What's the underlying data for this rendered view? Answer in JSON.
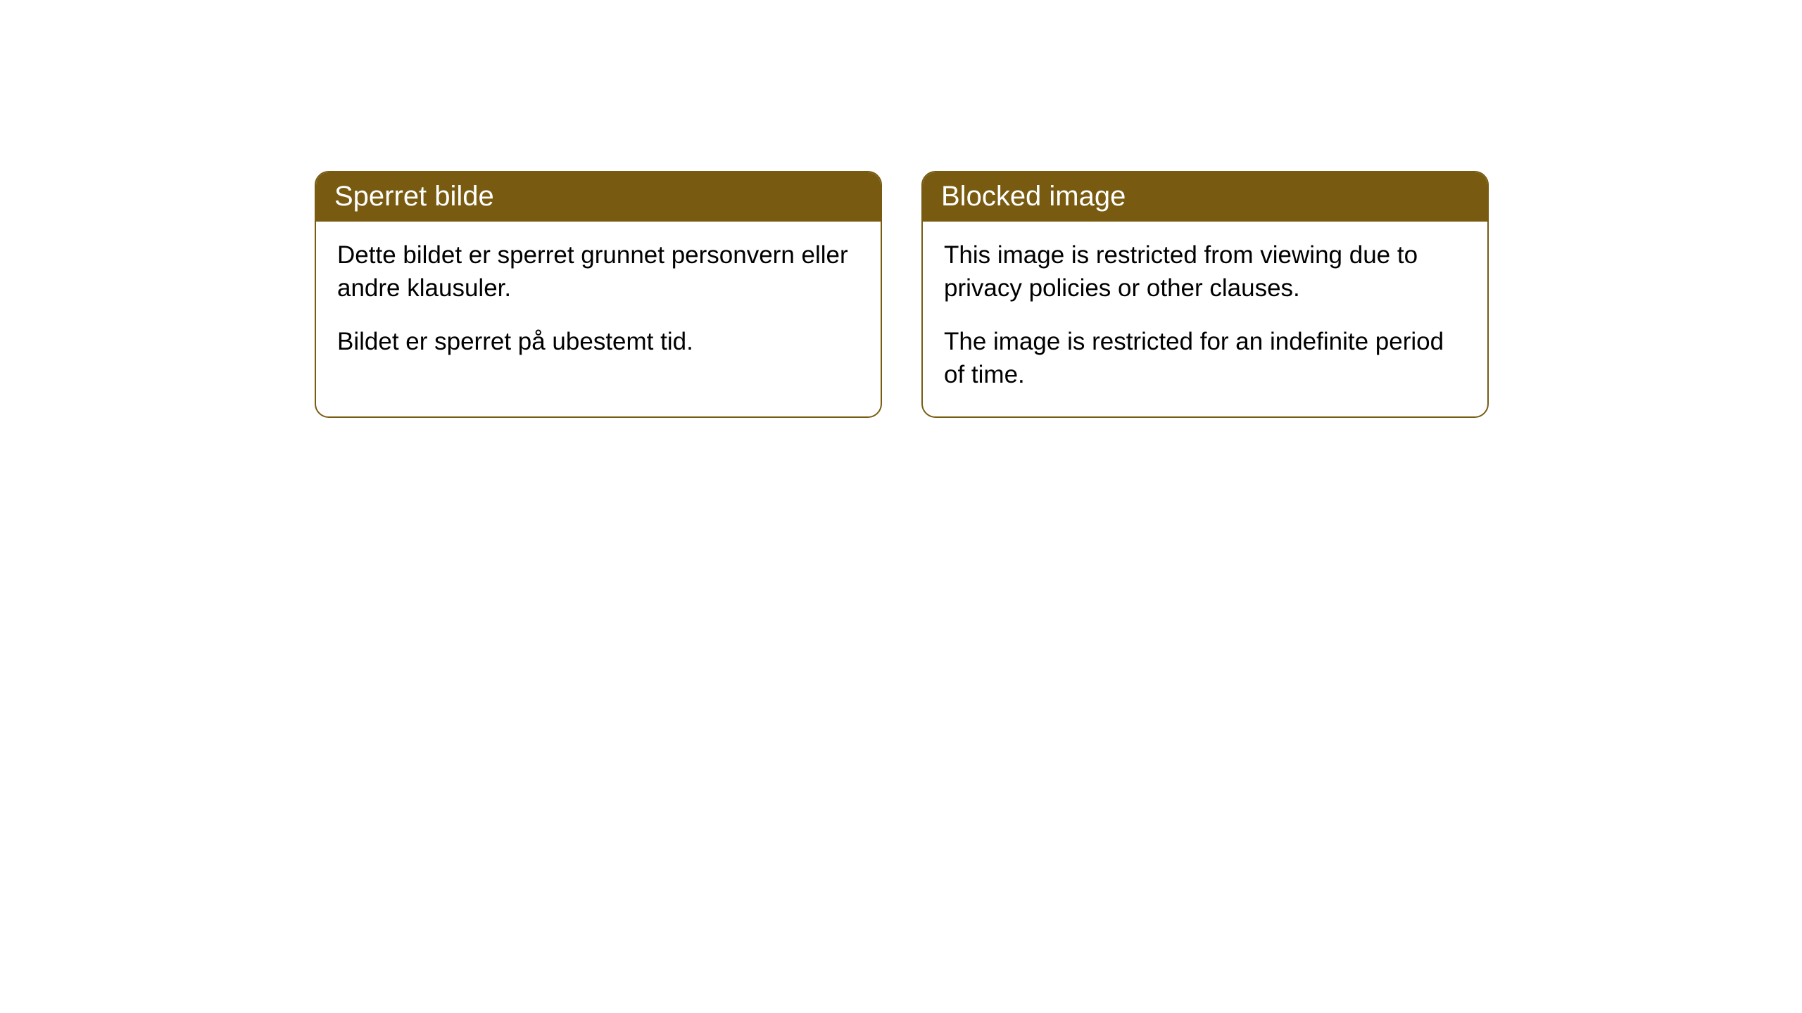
{
  "cards": [
    {
      "title": "Sperret bilde",
      "paragraph1": "Dette bildet er sperret grunnet personvern eller andre klausuler.",
      "paragraph2": "Bildet er sperret på ubestemt tid."
    },
    {
      "title": "Blocked image",
      "paragraph1": "This image is restricted from viewing due to privacy policies or other clauses.",
      "paragraph2": "The image is restricted for an indefinite period of time."
    }
  ],
  "style": {
    "header_bg_color": "#785b11",
    "header_text_color": "#ffffff",
    "border_color": "#785b11",
    "body_bg_color": "#ffffff",
    "body_text_color": "#000000",
    "border_radius": 20,
    "header_font_size": 40,
    "body_font_size": 35
  }
}
